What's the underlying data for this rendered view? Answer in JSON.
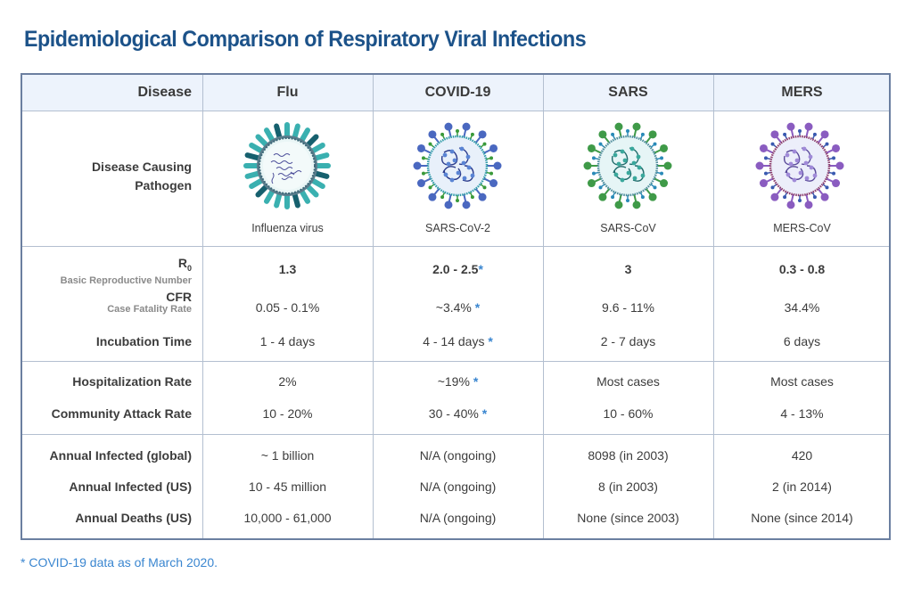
{
  "title": "Epidemiological Comparison of Respiratory Viral Infections",
  "header": {
    "row_label": "Disease",
    "columns": [
      "Flu",
      "COVID-19",
      "SARS",
      "MERS"
    ]
  },
  "pathogen_row": {
    "label_line1": "Disease Causing",
    "label_line2": "Pathogen",
    "pathogens": [
      {
        "name": "Influenza virus",
        "icon": "influenza-virus-icon"
      },
      {
        "name": "SARS-CoV-2",
        "icon": "sars-cov-2-virus-icon"
      },
      {
        "name": "SARS-CoV",
        "icon": "sars-cov-virus-icon"
      },
      {
        "name": "MERS-CoV",
        "icon": "mers-cov-virus-icon"
      }
    ]
  },
  "r0": {
    "label": "R",
    "label_sub": "0",
    "sublabel": "Basic Reproductive Number",
    "values": [
      "1.3",
      "2.0 - 2.5",
      "3",
      "0.3 - 0.8"
    ]
  },
  "cfr": {
    "label": "CFR",
    "sublabel": "Case Fatality Rate",
    "values": [
      "0.05 - 0.1%",
      "~3.4%",
      "9.6 - 11%",
      "34.4%"
    ]
  },
  "incubation": {
    "label": "Incubation Time",
    "values": [
      "1 - 4 days",
      "4 - 14 days",
      "2 - 7 days",
      "6 days"
    ]
  },
  "hospitalization": {
    "label": "Hospitalization Rate",
    "values": [
      "2%",
      "~19%",
      "Most cases",
      "Most cases"
    ]
  },
  "attack_rate": {
    "label": "Community Attack Rate",
    "values": [
      "10 - 20%",
      "30 - 40%",
      "10 - 60%",
      "4 - 13%"
    ]
  },
  "infected_global": {
    "label": "Annual Infected (global)",
    "values": [
      "~ 1 billion",
      "N/A (ongoing)",
      "8098 (in 2003)",
      "420"
    ]
  },
  "infected_us": {
    "label": "Annual Infected (US)",
    "values": [
      "10 - 45 million",
      "N/A (ongoing)",
      "8 (in 2003)",
      "2 (in 2014)"
    ]
  },
  "deaths_us": {
    "label": "Annual Deaths (US)",
    "values": [
      "10,000 - 61,000",
      "N/A (ongoing)",
      "None (since 2003)",
      "None (since 2014)"
    ]
  },
  "asterisk": "*",
  "footnote": "* COVID-19 data as of March 2020.",
  "colors": {
    "title": "#1c5289",
    "header_bg": "#edf3fc",
    "border": "#6b7fa0",
    "asterisk": "#3a86d0",
    "flu": "#3ab0b0",
    "covid": "#4a68c0",
    "sars": "#3f9a48",
    "mers": "#8a5cc0"
  }
}
